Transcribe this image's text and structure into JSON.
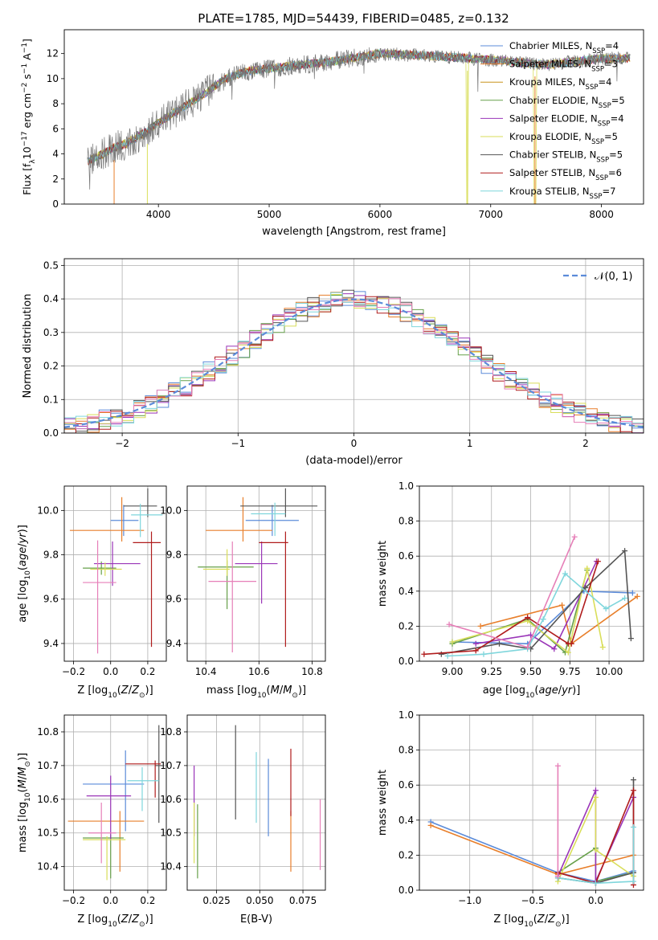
{
  "figure_title": "PLATE=1785, MJD=54439, FIBERID=0485, z=0.132",
  "colors": {
    "Chabrier MILES": "#5b8bd9",
    "Salpeter MILES": "#e87f2b",
    "Kroupa MILES": "#c9941c",
    "Chabrier ELODIE": "#67a04a",
    "Salpeter ELODIE": "#9a35b8",
    "Kroupa ELODIE": "#d9de5a",
    "Chabrier STELIB": "#555555",
    "Salpeter STELIB": "#b01c1c",
    "Kroupa STELIB": "#7fd6dc",
    "pink": "#e67fb8",
    "grid": "#b0b0b0"
  },
  "chart_data": [
    {
      "type": "line",
      "name": "spectrum",
      "title": "PLATE=1785, MJD=54439, FIBERID=0485, z=0.132",
      "xlabel": "wavelength [Angstrom, rest frame]",
      "ylabel": "Flux [f_λ 10^-17 erg cm^-2 s^-1 A^-1]",
      "xlim": [
        3150,
        8380
      ],
      "ylim": [
        0,
        13.9
      ],
      "xticks": [
        4000,
        5000,
        6000,
        7000,
        8000
      ],
      "yticks": [
        0,
        2,
        4,
        6,
        8,
        10,
        12
      ],
      "legend": "top-right",
      "legend_entries": [
        {
          "label": "Chabrier MILES, N_SSP=4",
          "main": "Chabrier MILES, N",
          "sub": "SSP",
          "tail": "=4",
          "color": "#5b8bd9"
        },
        {
          "label": "Salpeter MILES, N_SSP=3",
          "main": "Salpeter MILES, N",
          "sub": "SSP",
          "tail": "=3",
          "color": "#e87f2b"
        },
        {
          "label": "Kroupa MILES, N_SSP=4",
          "main": "Kroupa MILES, N",
          "sub": "SSP",
          "tail": "=4",
          "color": "#c9941c"
        },
        {
          "label": "Chabrier ELODIE, N_SSP=5",
          "main": "Chabrier ELODIE, N",
          "sub": "SSP",
          "tail": "=5",
          "color": "#67a04a"
        },
        {
          "label": "Salpeter ELODIE, N_SSP=4",
          "main": "Salpeter ELODIE, N",
          "sub": "SSP",
          "tail": "=4",
          "color": "#9a35b8"
        },
        {
          "label": "Kroupa ELODIE, N_SSP=5",
          "main": "Kroupa ELODIE, N",
          "sub": "SSP",
          "tail": "=5",
          "color": "#d9de5a"
        },
        {
          "label": "Chabrier STELIB, N_SSP=5",
          "main": "Chabrier STELIB, N",
          "sub": "SSP",
          "tail": "=5",
          "color": "#555555"
        },
        {
          "label": "Salpeter STELIB, N_SSP=6",
          "main": "Salpeter STELIB, N",
          "sub": "SSP",
          "tail": "=6",
          "color": "#b01c1c"
        },
        {
          "label": "Kroupa STELIB, N_SSP=7",
          "main": "Kroupa STELIB, N",
          "sub": "SSP",
          "tail": "=7",
          "color": "#7fd6dc"
        }
      ],
      "continuum_x": [
        3360,
        3500,
        3600,
        3700,
        3800,
        3900,
        4000,
        4200,
        4400,
        4600,
        4800,
        5000,
        5200,
        5500,
        6000,
        6500,
        7000,
        7500,
        7800,
        8000,
        8200
      ],
      "continuum_y": [
        3.4,
        4.0,
        4.5,
        4.8,
        5.3,
        5.8,
        6.5,
        7.6,
        8.7,
        10.0,
        10.6,
        10.8,
        11.0,
        11.3,
        12.0,
        11.8,
        11.5,
        11.1,
        11.4,
        11.6,
        11.6
      ],
      "dips": [
        {
          "x": 3600,
          "y": 0.0
        },
        {
          "x": 3900,
          "y": 0.0
        },
        {
          "x": 6790,
          "y": 0.0
        },
        {
          "x": 7400,
          "y": 0.0
        }
      ]
    },
    {
      "type": "histogram",
      "name": "residuals",
      "xlabel": "(data-model)/error",
      "ylabel": "Normed distribution",
      "xlim": [
        -2.5,
        2.5
      ],
      "ylim": [
        0,
        0.52
      ],
      "xticks": [
        -2,
        -1,
        0,
        1,
        2
      ],
      "yticks": [
        0.0,
        0.1,
        0.2,
        0.3,
        0.4,
        0.5
      ],
      "bin_width": 0.1,
      "legend_label": "𝒩(0, 1)",
      "legend_color": "#5b8bd9",
      "series_colors": [
        "#5b8bd9",
        "#e87f2b",
        "#67a04a",
        "#9a35b8",
        "#d9de5a",
        "#555555",
        "#b01c1c",
        "#7fd6dc",
        "#e67fb8"
      ]
    },
    {
      "type": "scatter",
      "name": "Z-age",
      "xlabel": "Z [log10(Z/Z⊙)]",
      "ylabel": "age [log10(age/yr)]",
      "xlim": [
        -0.25,
        0.3
      ],
      "ylim": [
        9.32,
        10.11
      ],
      "xticks": [
        -0.2,
        0.0,
        0.2
      ],
      "yticks": [
        9.4,
        9.6,
        9.8,
        10.0
      ],
      "points": [
        {
          "x": 0.07,
          "y": 9.955,
          "xerr": [
            0.07,
            0.08
          ],
          "yerr": [
            0.07,
            0.07
          ],
          "c": "#5b8bd9"
        },
        {
          "x": 0.06,
          "y": 9.91,
          "xerr": [
            0.28,
            0.12
          ],
          "yerr": [
            0.05,
            0.15
          ],
          "c": "#e87f2b"
        },
        {
          "x": -0.05,
          "y": 9.74,
          "xerr": [
            0.1,
            0.08
          ],
          "yerr": [
            0.03,
            0.03
          ],
          "c": "#67a04a"
        },
        {
          "x": 0.01,
          "y": 9.76,
          "xerr": [
            0.1,
            0.15
          ],
          "yerr": [
            0.1,
            0.1
          ],
          "c": "#9a35b8"
        },
        {
          "x": -0.03,
          "y": 9.735,
          "xerr": [
            0.08,
            0.09
          ],
          "yerr": [
            0.03,
            0.03
          ],
          "c": "#d9de5a"
        },
        {
          "x": 0.2,
          "y": 10.02,
          "xerr": [
            0.13,
            0.05
          ],
          "yerr": [
            0.05,
            0.08
          ],
          "c": "#555555"
        },
        {
          "x": 0.22,
          "y": 9.855,
          "xerr": [
            0.1,
            0.05
          ],
          "yerr": [
            0.47,
            0.05
          ],
          "c": "#b01c1c"
        },
        {
          "x": 0.16,
          "y": 9.98,
          "xerr": [
            0.05,
            0.12
          ],
          "yerr": [
            0.1,
            0.05
          ],
          "c": "#7fd6dc"
        },
        {
          "x": -0.07,
          "y": 9.675,
          "xerr": [
            0.08,
            0.1
          ],
          "yerr": [
            0.32,
            0.19
          ],
          "c": "#e67fb8"
        }
      ]
    },
    {
      "type": "scatter",
      "name": "mass-age",
      "xlabel": "mass [log10(M/M⊙)]",
      "ylabel": "",
      "xlim": [
        10.33,
        10.85
      ],
      "ylim": [
        9.32,
        10.11
      ],
      "xticks": [
        10.4,
        10.6,
        10.8
      ],
      "yticks": [
        9.4,
        9.6,
        9.8,
        10.0
      ],
      "points": [
        {
          "x": 10.65,
          "y": 9.955,
          "xerr": [
            0.1,
            0.1
          ],
          "yerr": [
            0.07,
            0.07
          ],
          "c": "#5b8bd9"
        },
        {
          "x": 10.54,
          "y": 9.91,
          "xerr": [
            0.14,
            0.11
          ],
          "yerr": [
            0.05,
            0.15
          ],
          "c": "#e87f2b"
        },
        {
          "x": 10.48,
          "y": 9.745,
          "xerr": [
            0.11,
            0.1
          ],
          "yerr": [
            0.19,
            0.03
          ],
          "c": "#67a04a"
        },
        {
          "x": 10.61,
          "y": 9.76,
          "xerr": [
            0.1,
            0.06
          ],
          "yerr": [
            0.18,
            0.1
          ],
          "c": "#9a35b8"
        },
        {
          "x": 10.48,
          "y": 9.735,
          "xerr": [
            0.09,
            0.01
          ],
          "yerr": [
            0.03,
            0.09
          ],
          "c": "#d9de5a"
        },
        {
          "x": 10.7,
          "y": 10.02,
          "xerr": [
            0.17,
            0.12
          ],
          "yerr": [
            0.05,
            0.08
          ],
          "c": "#555555"
        },
        {
          "x": 10.7,
          "y": 9.855,
          "xerr": [
            0.1,
            0.01
          ],
          "yerr": [
            0.47,
            0.05
          ],
          "c": "#b01c1c"
        },
        {
          "x": 10.66,
          "y": 9.985,
          "xerr": [
            0.09,
            0.04
          ],
          "yerr": [
            0.1,
            0.05
          ],
          "c": "#7fd6dc"
        },
        {
          "x": 10.5,
          "y": 9.68,
          "xerr": [
            0.09,
            0.09
          ],
          "yerr": [
            0.32,
            0.18
          ],
          "c": "#e67fb8"
        }
      ]
    },
    {
      "type": "line",
      "name": "age-weight",
      "xlabel": "age [log10(age/yr)]",
      "ylabel": "mass weight",
      "xlim": [
        8.79,
        10.22
      ],
      "ylim": [
        0,
        1
      ],
      "xticks": [
        9.0,
        9.25,
        9.5,
        9.75,
        10.0
      ],
      "yticks": [
        0.0,
        0.2,
        0.4,
        0.6,
        0.8,
        1.0
      ],
      "series": [
        {
          "c": "#5b8bd9",
          "x": [
            9.0,
            9.48,
            9.84,
            10.15
          ],
          "y": [
            0.11,
            0.1,
            0.4,
            0.39
          ]
        },
        {
          "c": "#e87f2b",
          "x": [
            9.18,
            9.7,
            9.76,
            10.18
          ],
          "y": [
            0.2,
            0.32,
            0.1,
            0.37
          ]
        },
        {
          "c": "#67a04a",
          "x": [
            9.0,
            9.48,
            9.72,
            9.86
          ],
          "y": [
            0.1,
            0.24,
            0.05,
            0.52
          ]
        },
        {
          "c": "#9a35b8",
          "x": [
            9.15,
            9.5,
            9.65,
            9.92
          ],
          "y": [
            0.1,
            0.15,
            0.07,
            0.57
          ]
        },
        {
          "c": "#d9de5a",
          "x": [
            9.0,
            9.48,
            9.74,
            9.86,
            9.96
          ],
          "y": [
            0.11,
            0.23,
            0.05,
            0.53,
            0.08
          ]
        },
        {
          "c": "#555555",
          "x": [
            8.93,
            9.3,
            9.5,
            9.85,
            10.1,
            10.14
          ],
          "y": [
            0.04,
            0.1,
            0.07,
            0.42,
            0.63,
            0.13
          ]
        },
        {
          "c": "#b01c1c",
          "x": [
            8.82,
            9.15,
            9.48,
            9.74,
            9.76,
            9.93
          ],
          "y": [
            0.04,
            0.06,
            0.25,
            0.1,
            0.1,
            0.57
          ]
        },
        {
          "c": "#7fd6dc",
          "x": [
            8.97,
            9.2,
            9.48,
            9.58,
            9.72,
            9.98,
            10.1
          ],
          "y": [
            0.03,
            0.04,
            0.07,
            0.24,
            0.5,
            0.3,
            0.36
          ]
        },
        {
          "c": "#e67fb8",
          "x": [
            8.98,
            9.48,
            9.78
          ],
          "y": [
            0.21,
            0.08,
            0.71
          ]
        }
      ]
    },
    {
      "type": "scatter",
      "name": "Z-mass",
      "xlabel": "Z [log10(Z/Z⊙)]",
      "ylabel": "mass [log10(M/M⊙)]",
      "xlim": [
        -0.25,
        0.3
      ],
      "ylim": [
        10.33,
        10.85
      ],
      "xticks": [
        -0.2,
        0.0,
        0.2
      ],
      "yticks": [
        10.4,
        10.5,
        10.6,
        10.7,
        10.8
      ],
      "points": [
        {
          "x": 0.08,
          "y": 10.645,
          "xerr": [
            0.23,
            0.1
          ],
          "yerr": [
            0.14,
            0.1
          ],
          "c": "#5b8bd9"
        },
        {
          "x": 0.05,
          "y": 10.535,
          "xerr": [
            0.28,
            0.13
          ],
          "yerr": [
            0.15,
            0.03
          ],
          "c": "#e87f2b"
        },
        {
          "x": 0.0,
          "y": 10.485,
          "xerr": [
            0.15,
            0.07
          ],
          "yerr": [
            0.12,
            0.01
          ],
          "c": "#67a04a"
        },
        {
          "x": 0.0,
          "y": 10.61,
          "xerr": [
            0.13,
            0.11
          ],
          "yerr": [
            0.13,
            0.06
          ],
          "c": "#9a35b8"
        },
        {
          "x": -0.02,
          "y": 10.48,
          "xerr": [
            0.13,
            0.1
          ],
          "yerr": [
            0.12,
            0.01
          ],
          "c": "#d9de5a"
        },
        {
          "x": 0.26,
          "y": 10.7,
          "xerr": [
            0.02,
            0.02
          ],
          "yerr": [
            0.17,
            0.12
          ],
          "c": "#555555"
        },
        {
          "x": 0.24,
          "y": 10.705,
          "xerr": [
            0.16,
            0.03
          ],
          "yerr": [
            0.1,
            0.01
          ],
          "c": "#b01c1c"
        },
        {
          "x": 0.17,
          "y": 10.655,
          "xerr": [
            0.08,
            0.09
          ],
          "yerr": [
            0.09,
            0.04
          ],
          "c": "#7fd6dc"
        },
        {
          "x": -0.05,
          "y": 10.5,
          "xerr": [
            0.07,
            0.08
          ],
          "yerr": [
            0.09,
            0.09
          ],
          "c": "#e67fb8"
        }
      ]
    },
    {
      "type": "scatter",
      "name": "EBV-mass",
      "xlabel": "E(B-V)",
      "ylabel": "",
      "xlim": [
        0.008,
        0.088
      ],
      "ylim": [
        10.33,
        10.85
      ],
      "xticks": [
        0.025,
        0.05,
        0.075
      ],
      "yticks": [
        10.4,
        10.5,
        10.6,
        10.7,
        10.8
      ],
      "points": [
        {
          "x": 0.055,
          "y": 10.62,
          "yerr": [
            0.13,
            0.1
          ],
          "c": "#5b8bd9"
        },
        {
          "x": 0.068,
          "y": 10.535,
          "yerr": [
            0.15,
            0.03
          ],
          "c": "#e87f2b"
        },
        {
          "x": 0.014,
          "y": 10.475,
          "yerr": [
            0.11,
            0.11
          ],
          "c": "#67a04a"
        },
        {
          "x": 0.012,
          "y": 10.61,
          "yerr": [
            0.12,
            0.09
          ],
          "c": "#9a35b8"
        },
        {
          "x": 0.012,
          "y": 10.48,
          "yerr": [
            0.07,
            0.11
          ],
          "c": "#d9de5a"
        },
        {
          "x": 0.036,
          "y": 10.7,
          "yerr": [
            0.16,
            0.12
          ],
          "c": "#555555"
        },
        {
          "x": 0.068,
          "y": 10.65,
          "yerr": [
            0.1,
            0.1
          ],
          "c": "#b01c1c"
        },
        {
          "x": 0.048,
          "y": 10.64,
          "yerr": [
            0.11,
            0.1
          ],
          "c": "#7fd6dc"
        },
        {
          "x": 0.085,
          "y": 10.48,
          "yerr": [
            0.09,
            0.12
          ],
          "c": "#e67fb8"
        }
      ]
    },
    {
      "type": "line",
      "name": "Z-weight",
      "xlabel": "Z [log10(Z/Z⊙)]",
      "ylabel": "mass weight",
      "xlim": [
        -1.4,
        0.38
      ],
      "ylim": [
        0,
        1
      ],
      "xticks": [
        -1.0,
        -0.5,
        0.0
      ],
      "yticks": [
        0.0,
        0.2,
        0.4,
        0.6,
        0.8,
        1.0
      ],
      "series": [
        {
          "c": "#5b8bd9",
          "x": [
            -1.31,
            -0.3,
            0.0,
            0.3
          ],
          "y": [
            0.39,
            0.1,
            0.05,
            0.11
          ]
        },
        {
          "c": "#e87f2b",
          "x": [
            -1.31,
            -0.3,
            0.3
          ],
          "y": [
            0.37,
            0.09,
            0.2
          ]
        },
        {
          "c": "#67a04a",
          "x": [
            -0.3,
            0.0,
            0.0,
            0.3
          ],
          "y": [
            0.1,
            0.24,
            0.05,
            0.1
          ]
        },
        {
          "c": "#9a35b8",
          "x": [
            -0.3,
            0.0,
            0.0,
            0.3
          ],
          "y": [
            0.08,
            0.57,
            0.05,
            0.53
          ]
        },
        {
          "c": "#d9de5a",
          "x": [
            -0.3,
            0.0,
            0.0,
            0.3
          ],
          "y": [
            0.05,
            0.53,
            0.23,
            0.08
          ]
        },
        {
          "c": "#555555",
          "x": [
            -0.3,
            0.0,
            0.3,
            0.3
          ],
          "y": [
            0.07,
            0.04,
            0.1,
            0.63
          ]
        },
        {
          "c": "#b01c1c",
          "x": [
            -0.3,
            0.0,
            0.3,
            0.3
          ],
          "y": [
            0.1,
            0.04,
            0.57,
            0.03
          ]
        },
        {
          "c": "#7fd6dc",
          "x": [
            -0.3,
            0.0,
            0.3,
            0.3
          ],
          "y": [
            0.07,
            0.04,
            0.05,
            0.36
          ]
        },
        {
          "c": "#e67fb8",
          "x": [
            -0.3,
            -0.3
          ],
          "y": [
            0.08,
            0.71
          ]
        }
      ]
    }
  ]
}
